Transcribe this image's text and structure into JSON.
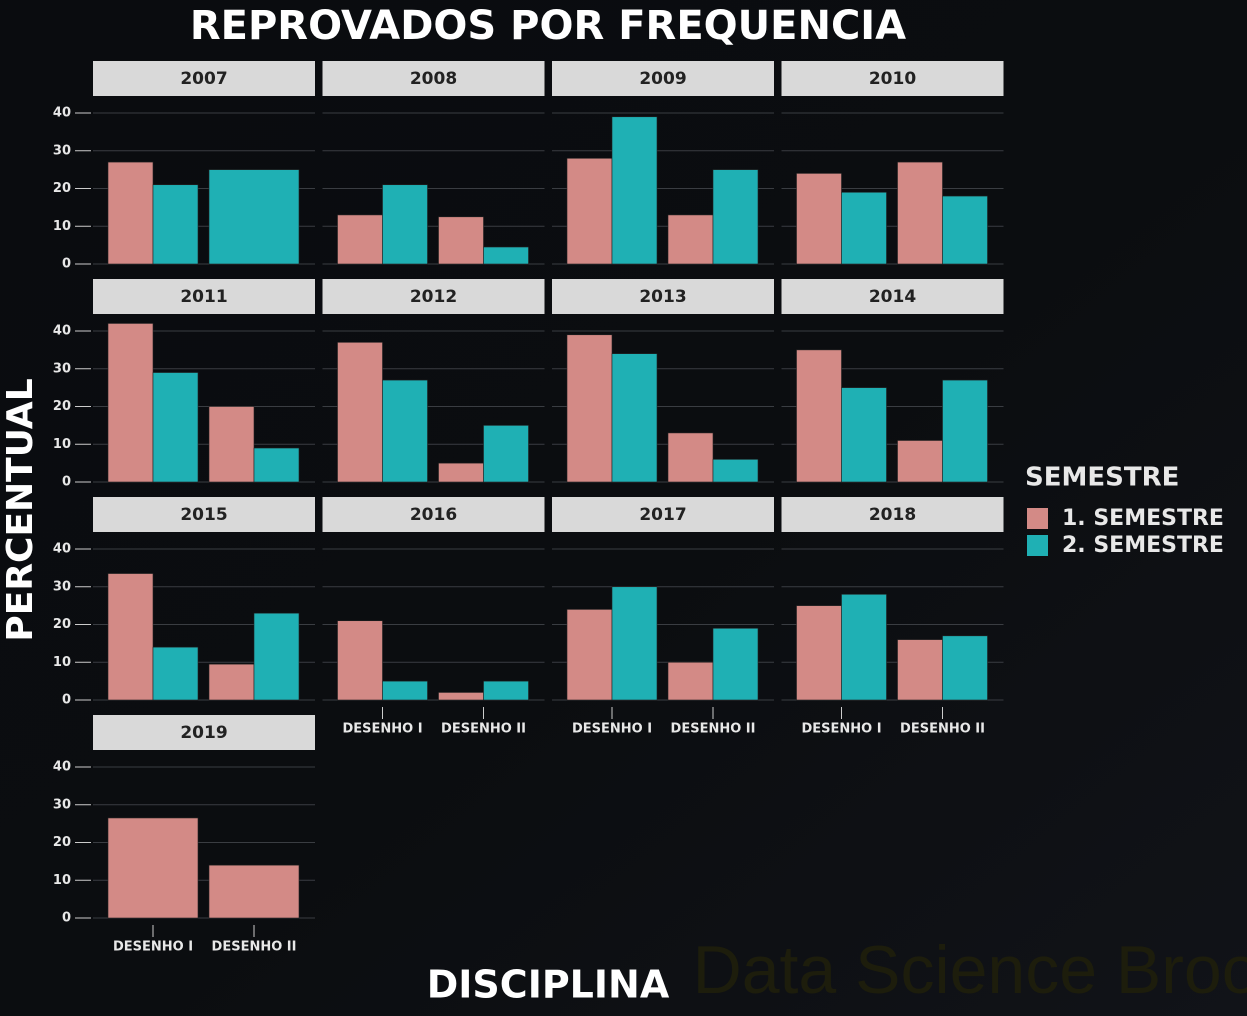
{
  "chart_data": {
    "type": "bar",
    "title": "REPROVADOS POR FREQUENCIA",
    "x_label": "DISCIPLINA",
    "y_label": "PERCENTUAL",
    "legend_title": "SEMESTRE",
    "watermark": "Data Science Broon",
    "categories": [
      "DESENHO I",
      "DESENHO II"
    ],
    "series": [
      {
        "name": "1. SEMESTRE",
        "color": "#d38a86"
      },
      {
        "name": "2. SEMESTRE",
        "color": "#1fb0b4"
      }
    ],
    "ylim": [
      0,
      40
    ],
    "yticks": [
      0,
      10,
      20,
      30,
      40
    ],
    "grid": true,
    "panels": [
      {
        "title": "2007",
        "values": [
          [
            27,
            null
          ],
          [
            21,
            25
          ]
        ]
      },
      {
        "title": "2008",
        "values": [
          [
            13,
            12.5
          ],
          [
            21,
            4.5
          ]
        ]
      },
      {
        "title": "2009",
        "values": [
          [
            28,
            13
          ],
          [
            39,
            25
          ]
        ]
      },
      {
        "title": "2010",
        "values": [
          [
            24,
            27
          ],
          [
            19,
            18
          ]
        ]
      },
      {
        "title": "2011",
        "values": [
          [
            42,
            20
          ],
          [
            29,
            9
          ]
        ]
      },
      {
        "title": "2012",
        "values": [
          [
            37,
            5
          ],
          [
            27,
            15
          ]
        ]
      },
      {
        "title": "2013",
        "values": [
          [
            39,
            13
          ],
          [
            34,
            6
          ]
        ]
      },
      {
        "title": "2014",
        "values": [
          [
            35,
            11
          ],
          [
            25,
            27
          ]
        ]
      },
      {
        "title": "2015",
        "values": [
          [
            33.5,
            9.5
          ],
          [
            14,
            23
          ]
        ]
      },
      {
        "title": "2016",
        "values": [
          [
            21,
            2
          ],
          [
            5,
            5
          ]
        ]
      },
      {
        "title": "2017",
        "values": [
          [
            24,
            10
          ],
          [
            30,
            19
          ]
        ]
      },
      {
        "title": "2018",
        "values": [
          [
            25,
            16
          ],
          [
            28,
            17
          ]
        ]
      },
      {
        "title": "2019",
        "values": [
          [
            26.5,
            14
          ],
          [
            null,
            null
          ]
        ]
      }
    ]
  }
}
